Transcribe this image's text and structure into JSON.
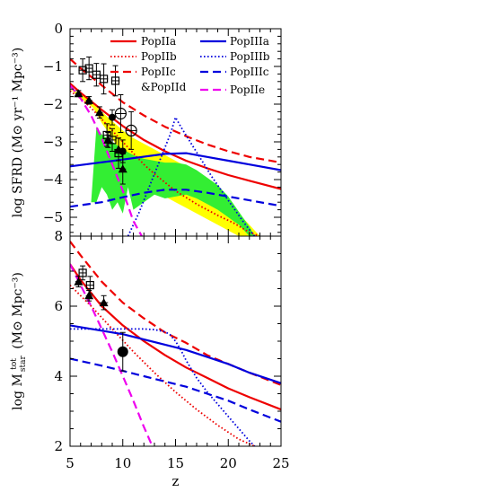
{
  "chart_data": {
    "type": "line",
    "xlabel": "z",
    "xlim": [
      5,
      25
    ],
    "xticks": [
      5,
      10,
      15,
      20,
      25
    ],
    "colors": {
      "red": "#ee0000",
      "blue": "#0000dd",
      "magenta": "#ee00ee",
      "yellow": "#ffff00",
      "green": "#33ee33",
      "black": "#000000"
    },
    "legend": {
      "col1": [
        {
          "label": "PopIIa",
          "color": "#ee0000",
          "dash": "solid"
        },
        {
          "label": "PopIIb",
          "color": "#ee0000",
          "dash": "dotted"
        },
        {
          "label": "PopIIc",
          "color": "#ee0000",
          "dash": "dashed"
        },
        {
          "label": "&PopIId",
          "color": "",
          "dash": "none"
        }
      ],
      "col2": [
        {
          "label": "PopIIIa",
          "color": "#0000dd",
          "dash": "solid"
        },
        {
          "label": "PopIIIb",
          "color": "#0000dd",
          "dash": "dotted"
        },
        {
          "label": "PopIIIc",
          "color": "#0000dd",
          "dash": "dashed"
        },
        {
          "label": "PopIIe",
          "color": "#ee00ee",
          "dash": "dashed"
        }
      ]
    },
    "panels": [
      {
        "name": "top",
        "ylabel": "log SFRD (M⊙ yr⁻¹ Mpc⁻³)",
        "ylim": [
          -5.5,
          0
        ],
        "yticks": [
          0,
          -1,
          -2,
          -3,
          -4,
          -5
        ],
        "ytick_labels": [
          "0",
          "−1",
          "−2",
          "−3",
          "−4",
          "−5"
        ],
        "yellow_band": {
          "x": [
            5,
            5.8,
            6.6,
            7.2,
            8,
            9,
            10,
            11,
            12,
            13,
            14,
            15,
            16,
            17,
            18,
            19,
            20,
            21,
            22,
            23,
            23,
            22,
            21,
            20,
            19,
            18,
            17,
            16,
            15,
            14,
            13,
            12,
            11,
            10,
            9,
            8,
            7.2
          ],
          "y": [
            -1.6,
            -1.7,
            -1.85,
            -2.0,
            -2.2,
            -2.45,
            -2.7,
            -2.9,
            -3.05,
            -3.2,
            -3.35,
            -3.5,
            -3.65,
            -3.85,
            -4.05,
            -4.25,
            -4.55,
            -4.9,
            -5.2,
            -5.5,
            -5.5,
            -5.5,
            -5.5,
            -5.35,
            -5.2,
            -5.05,
            -4.9,
            -4.75,
            -4.6,
            -4.45,
            -4.35,
            -4.3,
            -3.9,
            -3.4,
            -2.9,
            -2.5,
            -2.1
          ]
        },
        "green_band": {
          "x": [
            7.5,
            8,
            9,
            10,
            11,
            12,
            13,
            14,
            15,
            16,
            17,
            18,
            19,
            20,
            21,
            22,
            22.5,
            22,
            21,
            20,
            19,
            18,
            17,
            16,
            15,
            14,
            13,
            12,
            11,
            10.5,
            10,
            9.5,
            9,
            8.5,
            8,
            7.5,
            7
          ],
          "y": [
            -2.6,
            -2.8,
            -3.0,
            -3.2,
            -3.35,
            -3.45,
            -3.5,
            -3.55,
            -3.55,
            -3.6,
            -3.75,
            -3.95,
            -4.15,
            -4.45,
            -4.85,
            -5.25,
            -5.5,
            -5.5,
            -5.2,
            -5.0,
            -4.8,
            -4.65,
            -4.5,
            -4.4,
            -4.45,
            -4.5,
            -4.4,
            -4.6,
            -4.8,
            -4.2,
            -4.9,
            -4.6,
            -4.8,
            -4.4,
            -4.2,
            -4.6,
            -4.6
          ]
        },
        "series": [
          {
            "name": "PopIIa",
            "color": "#ee0000",
            "dash": "solid",
            "x": [
              5,
              6,
              8,
              10,
              12,
              14,
              16,
              18,
              20,
              22,
              25
            ],
            "y": [
              -1.45,
              -1.7,
              -2.15,
              -2.58,
              -2.95,
              -3.25,
              -3.5,
              -3.7,
              -3.88,
              -4.03,
              -4.25
            ]
          },
          {
            "name": "PopIIb",
            "color": "#ee0000",
            "dash": "dotted",
            "x": [
              5,
              6,
              7,
              8,
              9,
              10,
              11,
              12,
              13,
              15,
              17,
              19,
              20.5,
              22,
              23
            ],
            "y": [
              -1.65,
              -1.85,
              -2.1,
              -2.4,
              -2.7,
              -3.0,
              -3.3,
              -3.6,
              -3.85,
              -4.3,
              -4.65,
              -4.95,
              -5.15,
              -5.4,
              -5.5
            ]
          },
          {
            "name": "PopIIc",
            "color": "#ee0000",
            "dash": "dashed",
            "x": [
              5,
              6,
              8,
              10,
              12,
              14,
              16,
              18,
              20,
              22,
              25
            ],
            "y": [
              -0.8,
              -1.05,
              -1.5,
              -1.95,
              -2.3,
              -2.6,
              -2.85,
              -3.07,
              -3.25,
              -3.4,
              -3.55
            ]
          },
          {
            "name": "PopIIIa",
            "color": "#0000dd",
            "dash": "solid",
            "x": [
              5,
              10,
              14,
              16,
              18,
              20,
              22,
              25
            ],
            "y": [
              -3.65,
              -3.47,
              -3.32,
              -3.3,
              -3.4,
              -3.5,
              -3.6,
              -3.75
            ]
          },
          {
            "name": "PopIIIb",
            "color": "#0000dd",
            "dash": "dotted",
            "x": [
              10.5,
              11.5,
              12.5,
              13.5,
              14.5,
              15,
              15.5,
              16.5,
              17.5,
              18.5,
              19.5,
              20.5,
              21.5,
              22.5
            ],
            "y": [
              -5.5,
              -4.9,
              -4.2,
              -3.5,
              -2.8,
              -2.35,
              -2.6,
              -3.05,
              -3.5,
              -3.95,
              -4.35,
              -4.75,
              -5.15,
              -5.5
            ]
          },
          {
            "name": "PopIIIc",
            "color": "#0000dd",
            "dash": "dashed",
            "x": [
              5,
              8,
              10,
              12,
              14,
              16,
              18,
              20,
              22,
              25
            ],
            "y": [
              -4.72,
              -4.6,
              -4.47,
              -4.35,
              -4.27,
              -4.27,
              -4.35,
              -4.45,
              -4.55,
              -4.7
            ]
          },
          {
            "name": "PopIIe",
            "color": "#ee00ee",
            "dash": "dashed",
            "x": [
              5,
              6,
              7,
              8,
              9,
              10,
              11,
              11.8
            ],
            "y": [
              -1.5,
              -1.85,
              -2.3,
              -2.9,
              -3.6,
              -4.3,
              -5.1,
              -5.5
            ]
          }
        ],
        "points": [
          {
            "marker": "triangle",
            "x": 5.8,
            "y": -1.72,
            "xerr": 0.3,
            "yerr": 0.08
          },
          {
            "marker": "triangle",
            "x": 6.8,
            "y": -1.9,
            "xerr": 0.3,
            "yerr": 0.1
          },
          {
            "marker": "triangle",
            "x": 7.8,
            "y": -2.22,
            "xerr": 0.3,
            "yerr": 0.15
          },
          {
            "marker": "triangle",
            "x": 8.6,
            "y": -2.95,
            "xerr": 0.3,
            "yerr": 0.2
          },
          {
            "marker": "triangle",
            "x": 9.6,
            "y": -3.2,
            "xerr": 0.4,
            "yerr": 0.3
          },
          {
            "marker": "triangle",
            "x": 10.0,
            "y": -3.72,
            "xerr": 0.3,
            "yerr": 0.4
          },
          {
            "marker": "square",
            "x": 6.2,
            "y": -1.1,
            "xerr": 0.4,
            "yerr": 0.3
          },
          {
            "marker": "square",
            "x": 6.8,
            "y": -1.05,
            "xerr": 0.3,
            "yerr": 0.3
          },
          {
            "marker": "square",
            "x": 7.5,
            "y": -1.22,
            "xerr": 0.4,
            "yerr": 0.3
          },
          {
            "marker": "square",
            "x": 8.2,
            "y": -1.33,
            "xerr": 0.4,
            "yerr": 0.4
          },
          {
            "marker": "square",
            "x": 9.3,
            "y": -1.38,
            "xerr": 0.4,
            "yerr": 0.4
          },
          {
            "marker": "square",
            "x": 8.5,
            "y": -2.82,
            "xerr": 0.3,
            "yerr": 0.3
          },
          {
            "marker": "square",
            "x": 9.0,
            "y": -2.95,
            "xerr": 0.3,
            "yerr": 0.3
          },
          {
            "marker": "square",
            "x": 9.6,
            "y": -3.3,
            "xerr": 0.3,
            "yerr": 0.4
          },
          {
            "marker": "circle-open",
            "x": 9.8,
            "y": -2.25,
            "xerr": 0.5,
            "yerr": 0.5
          },
          {
            "marker": "circle-open",
            "x": 10.8,
            "y": -2.7,
            "xerr": 0.5,
            "yerr": 0.5
          },
          {
            "marker": "circle-filled",
            "x": 9.0,
            "y": -2.35,
            "xerr": 0.3,
            "yerr": 0.2
          },
          {
            "marker": "circle-filled",
            "x": 10.0,
            "y": -3.25,
            "xerr": 0.3,
            "yerr": 0.3
          }
        ]
      },
      {
        "name": "bottom",
        "ylabel": "log Mₒₜₐᵣ tot (M⊙ Mpc⁻³)",
        "ylabel_main": "log M",
        "ylabel_sup": "tot",
        "ylabel_sub": "star",
        "ylabel_units": "(M⊙ Mpc⁻³)",
        "ylim": [
          2,
          8
        ],
        "yticks": [
          2,
          4,
          6,
          8
        ],
        "ytick_labels": [
          "2",
          "4",
          "6",
          "8"
        ],
        "series": [
          {
            "name": "PopIIa",
            "color": "#ee0000",
            "dash": "solid",
            "x": [
              5,
              6,
              8,
              10,
              12,
              14,
              16,
              18,
              20,
              22,
              25
            ],
            "y": [
              7.2,
              6.75,
              6.0,
              5.45,
              5.0,
              4.6,
              4.25,
              3.95,
              3.65,
              3.4,
              3.05
            ]
          },
          {
            "name": "PopIIb",
            "color": "#ee0000",
            "dash": "dotted",
            "x": [
              5,
              7,
              9,
              11,
              13,
              15,
              17,
              19,
              21,
              22.5
            ],
            "y": [
              6.6,
              6.0,
              5.35,
              4.7,
              4.1,
              3.55,
              3.05,
              2.6,
              2.2,
              2.0
            ]
          },
          {
            "name": "PopIIc",
            "color": "#ee0000",
            "dash": "dashed",
            "x": [
              5,
              6,
              8,
              10,
              12,
              14,
              16,
              18,
              20,
              22,
              25
            ],
            "y": [
              7.85,
              7.45,
              6.7,
              6.1,
              5.65,
              5.25,
              4.95,
              4.6,
              4.35,
              4.1,
              3.75
            ]
          },
          {
            "name": "PopIIIa",
            "color": "#0000dd",
            "dash": "solid",
            "x": [
              5,
              8,
              10,
              12,
              14,
              16,
              18,
              20,
              22,
              25
            ],
            "y": [
              5.45,
              5.3,
              5.2,
              5.05,
              4.9,
              4.75,
              4.55,
              4.35,
              4.1,
              3.8
            ]
          },
          {
            "name": "PopIIIb",
            "color": "#0000dd",
            "dash": "dotted",
            "x": [
              5,
              8,
              10,
              12,
              13,
              14,
              14.5,
              15,
              15.5,
              16,
              17,
              18,
              19,
              20,
              21,
              22,
              22.5
            ],
            "y": [
              5.35,
              5.35,
              5.35,
              5.35,
              5.33,
              5.27,
              5.18,
              5.0,
              4.75,
              4.45,
              3.95,
              3.55,
              3.2,
              2.85,
              2.5,
              2.15,
              2.0
            ]
          },
          {
            "name": "PopIIIc",
            "color": "#0000dd",
            "dash": "dashed",
            "x": [
              5,
              8,
              10,
              12,
              14,
              16,
              18,
              20,
              22,
              25
            ],
            "y": [
              4.5,
              4.3,
              4.15,
              4.0,
              3.85,
              3.7,
              3.5,
              3.3,
              3.05,
              2.7
            ]
          },
          {
            "name": "PopIIe",
            "color": "#ee00ee",
            "dash": "dashed",
            "x": [
              5,
              6,
              7,
              8,
              9,
              10,
              11,
              12,
              12.8
            ],
            "y": [
              7.2,
              6.6,
              6.0,
              5.35,
              4.7,
              4.0,
              3.3,
              2.55,
              2.0
            ]
          }
        ],
        "points": [
          {
            "marker": "square",
            "x": 6.2,
            "y": 6.95,
            "xerr": 0.3,
            "yerr": 0.2
          },
          {
            "marker": "square",
            "x": 6.9,
            "y": 6.6,
            "xerr": 0.4,
            "yerr": 0.25
          },
          {
            "marker": "triangle",
            "x": 5.8,
            "y": 6.7,
            "xerr": 0.3,
            "yerr": 0.15
          },
          {
            "marker": "triangle",
            "x": 6.8,
            "y": 6.3,
            "xerr": 0.3,
            "yerr": 0.15
          },
          {
            "marker": "triangle",
            "x": 8.2,
            "y": 6.1,
            "xerr": 0.4,
            "yerr": 0.2
          },
          {
            "marker": "circle-filled",
            "x": 10.0,
            "y": 4.7,
            "xerr": 0.4,
            "yerr": 0.55
          }
        ]
      }
    ]
  }
}
